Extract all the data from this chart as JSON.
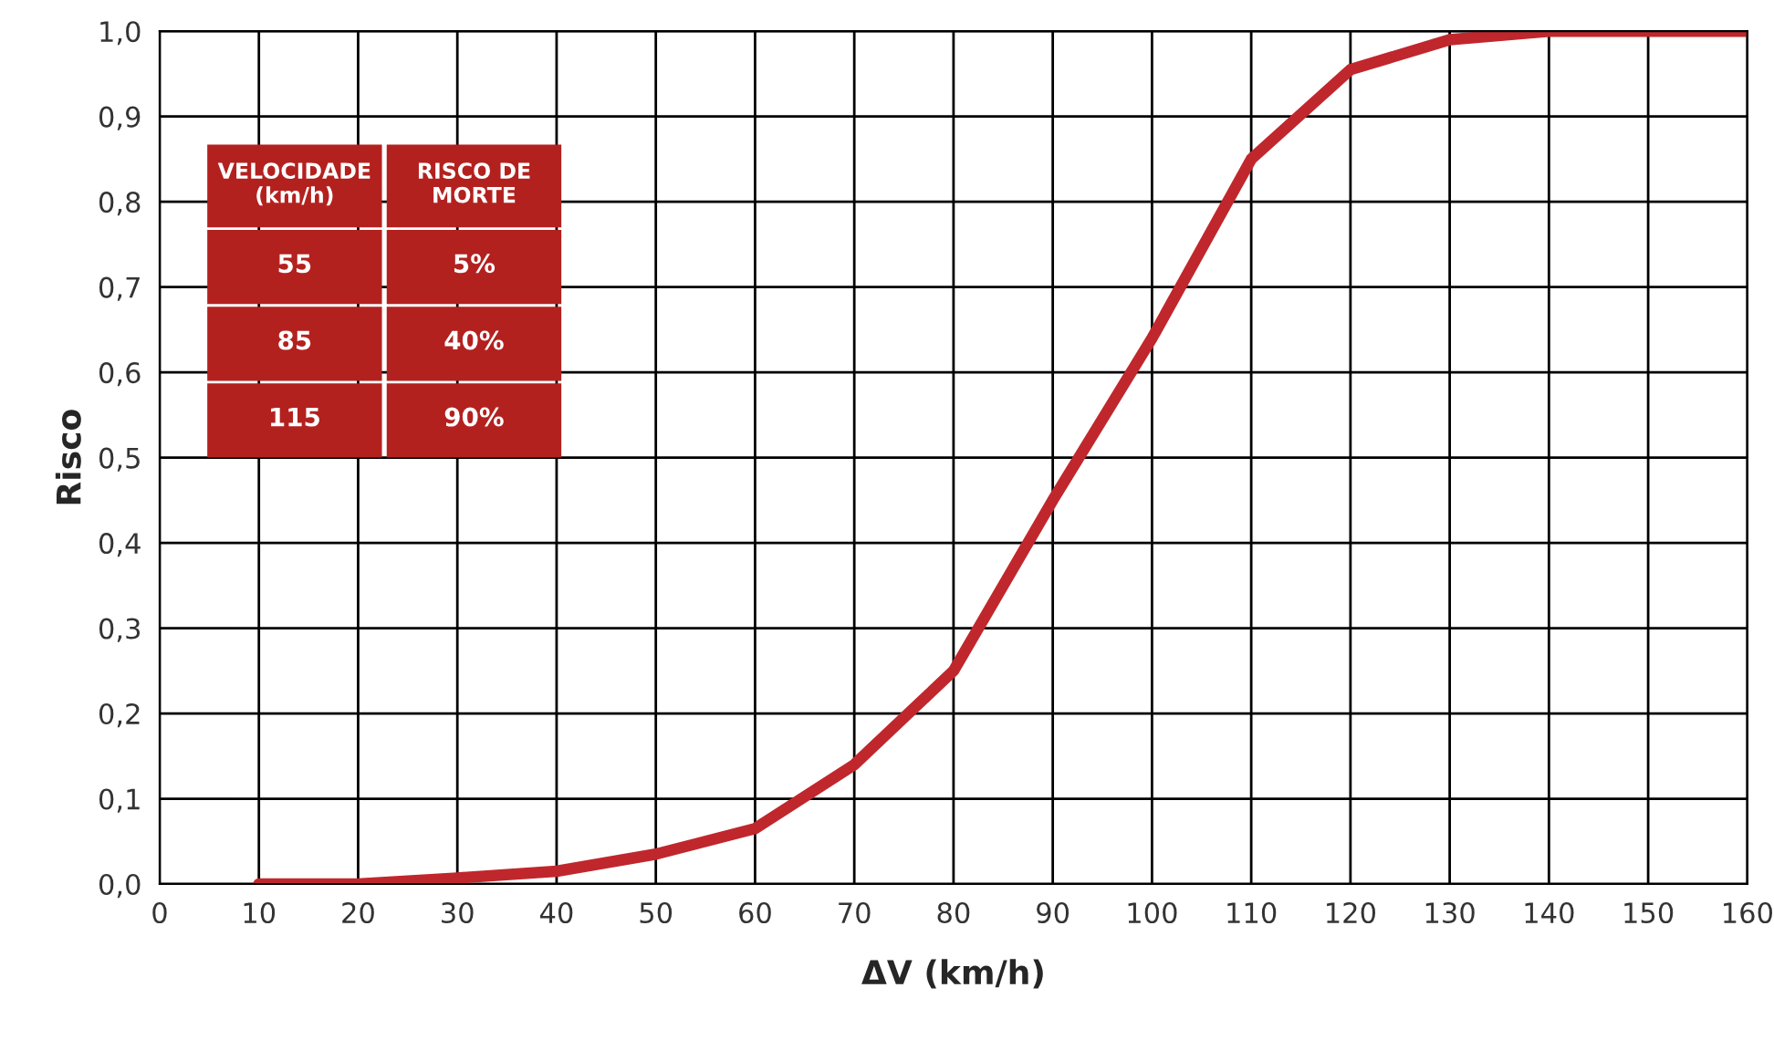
{
  "chart_data": {
    "type": "line",
    "xlabel": "ΔV (km/h)",
    "ylabel": "Risco",
    "x": [
      10,
      20,
      30,
      40,
      50,
      60,
      70,
      80,
      90,
      100,
      110,
      120,
      130,
      140,
      150,
      160
    ],
    "series": [
      {
        "color": "#c0272d",
        "values": [
          0.0,
          0.0,
          0.007,
          0.015,
          0.035,
          0.065,
          0.14,
          0.25,
          0.45,
          0.64,
          0.85,
          0.955,
          0.99,
          1.0,
          1.0,
          1.0
        ]
      }
    ],
    "xlim": [
      0,
      160
    ],
    "xticks": [
      0,
      10,
      20,
      30,
      40,
      50,
      60,
      70,
      80,
      90,
      100,
      110,
      120,
      130,
      140,
      150,
      160
    ],
    "ylim": [
      0,
      1
    ],
    "yticks": [
      {
        "value": 0,
        "label": "0,0"
      },
      {
        "value": 0.1,
        "label": "0,1"
      },
      {
        "value": 0.2,
        "label": "0,2"
      },
      {
        "value": 0.3,
        "label": "0,3"
      },
      {
        "value": 0.4,
        "label": "0,4"
      },
      {
        "value": 0.5,
        "label": "0,5"
      },
      {
        "value": 0.6,
        "label": "0,6"
      },
      {
        "value": 0.7,
        "label": "0,7"
      },
      {
        "value": 0.8,
        "label": "0,8"
      },
      {
        "value": 0.9,
        "label": "0,9"
      },
      {
        "value": 1.0,
        "label": "1,0"
      }
    ],
    "grid": true,
    "marker": "none",
    "line_style": "solid",
    "annotations": [
      "VELOCIDADE\n(km/h)",
      "RISCO DE\nMORTE",
      "55",
      "5%",
      "85",
      "40%",
      "115",
      "90%"
    ]
  }
}
